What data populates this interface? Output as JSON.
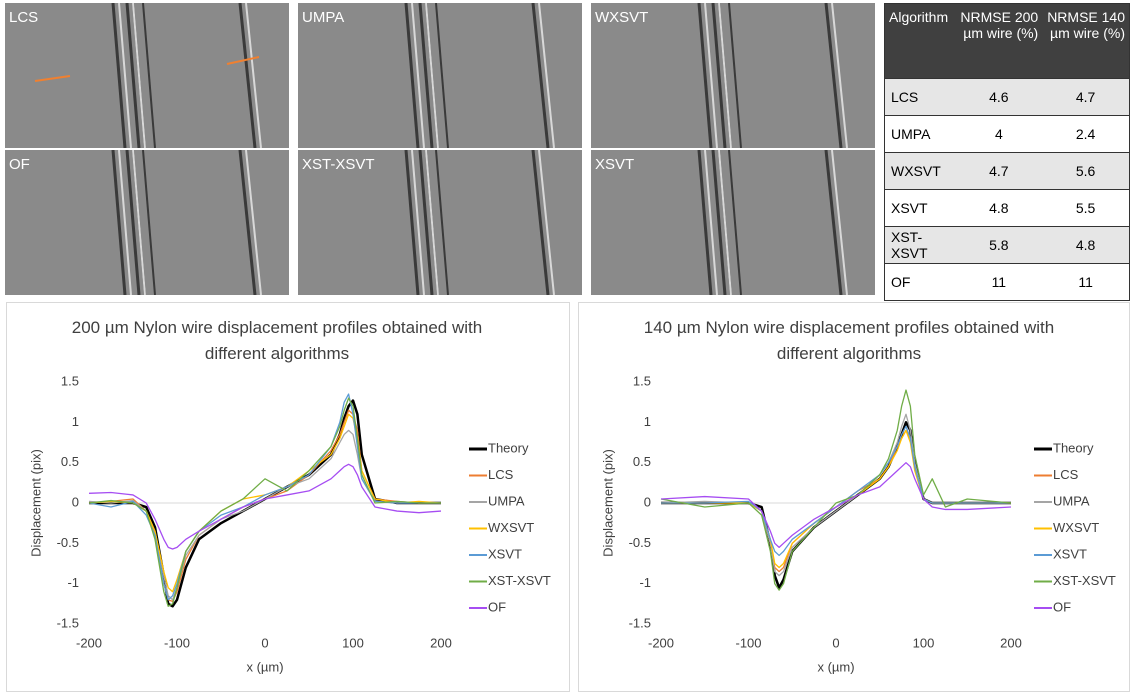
{
  "panels": [
    "LCS",
    "UMPA",
    "WXSVT",
    "OF",
    "XST-XSVT",
    "XSVT"
  ],
  "table": {
    "header": [
      "Algorithm",
      "NRMSE 200 µm wire (%)",
      "NRMSE 140 µm wire (%)"
    ],
    "rows": [
      [
        "LCS",
        4.6,
        4.7
      ],
      [
        "UMPA",
        4,
        2.4
      ],
      [
        "WXSVT",
        4.7,
        5.6
      ],
      [
        "XSVT",
        4.8,
        5.5
      ],
      [
        "XST-XSVT",
        5.8,
        4.8
      ],
      [
        "OF",
        11,
        11
      ]
    ]
  },
  "chart_data": [
    {
      "type": "line",
      "title": "200 µm Nylon wire displacement profiles obtained with different algorithms",
      "x_label": "x (µm)",
      "y_label": "Displacement (pix)",
      "xlim": [
        -200,
        200
      ],
      "xticks": [
        -200,
        -100,
        0,
        100,
        200
      ],
      "ylim": [
        -1.5,
        1.5
      ],
      "yticks": [
        -1.5,
        -1,
        -0.5,
        0,
        0.5,
        1,
        1.5
      ],
      "legend": "right",
      "x": [
        -200,
        -175,
        -150,
        -135,
        -125,
        -115,
        -110,
        -105,
        -100,
        -90,
        -75,
        -50,
        -25,
        0,
        25,
        50,
        75,
        85,
        90,
        95,
        100,
        105,
        110,
        125,
        150,
        175,
        200
      ],
      "series": [
        {
          "name": "Theory",
          "color": "#000000",
          "values": [
            0,
            0,
            0,
            -0.05,
            -0.3,
            -0.9,
            -1.25,
            -1.28,
            -1.2,
            -0.8,
            -0.45,
            -0.25,
            -0.1,
            0.05,
            0.2,
            0.35,
            0.6,
            0.85,
            1.05,
            1.2,
            1.27,
            1.1,
            0.6,
            0.05,
            0,
            0,
            0
          ]
        },
        {
          "name": "LCS",
          "color": "#ed7d31",
          "values": [
            0,
            0.02,
            0.05,
            -0.1,
            -0.4,
            -1.0,
            -1.2,
            -1.22,
            -1.1,
            -0.7,
            -0.4,
            -0.2,
            -0.05,
            0.05,
            0.15,
            0.35,
            0.65,
            0.85,
            1.0,
            1.15,
            1.1,
            0.9,
            0.4,
            0.05,
            0.02,
            0,
            0
          ]
        },
        {
          "name": "UMPA",
          "color": "#a5a5a5",
          "values": [
            0.02,
            0,
            0.03,
            -0.1,
            -0.35,
            -0.9,
            -1.15,
            -1.2,
            -1.05,
            -0.65,
            -0.4,
            -0.2,
            -0.1,
            0.05,
            0.2,
            0.3,
            0.55,
            0.75,
            0.85,
            0.9,
            0.85,
            0.6,
            0.3,
            0.02,
            0,
            0,
            0
          ]
        },
        {
          "name": "WXSVT",
          "color": "#ffc000",
          "values": [
            0,
            0.02,
            0,
            -0.1,
            -0.35,
            -0.85,
            -1.05,
            -1.1,
            -0.95,
            -0.6,
            -0.35,
            -0.1,
            0.05,
            0.1,
            0.2,
            0.4,
            0.6,
            0.8,
            0.95,
            1.1,
            1.05,
            0.8,
            0.4,
            0.05,
            0,
            0.02,
            0
          ]
        },
        {
          "name": "XSVT",
          "color": "#5b9bd5",
          "values": [
            0,
            -0.05,
            0.02,
            -0.15,
            -0.4,
            -1.0,
            -1.2,
            -1.15,
            -1.0,
            -0.6,
            -0.35,
            -0.15,
            -0.05,
            0.1,
            0.2,
            0.35,
            0.7,
            1.0,
            1.25,
            1.35,
            1.1,
            0.7,
            0.3,
            0.02,
            0,
            0,
            0
          ]
        },
        {
          "name": "XST-XSVT",
          "color": "#70ad47",
          "values": [
            0,
            0.03,
            0,
            -0.1,
            -0.45,
            -1.1,
            -1.28,
            -1.25,
            -1.05,
            -0.6,
            -0.35,
            -0.1,
            0.05,
            0.3,
            0.15,
            0.4,
            0.7,
            0.95,
            1.15,
            1.3,
            1.2,
            0.8,
            0.35,
            0,
            0.02,
            0,
            0
          ]
        },
        {
          "name": "OF",
          "color": "#a64df2",
          "values": [
            0.12,
            0.13,
            0.1,
            0,
            -0.2,
            -0.45,
            -0.55,
            -0.57,
            -0.55,
            -0.45,
            -0.35,
            -0.2,
            -0.05,
            0.05,
            0.1,
            0.15,
            0.3,
            0.4,
            0.45,
            0.48,
            0.45,
            0.35,
            0.2,
            -0.05,
            -0.1,
            -0.12,
            -0.1
          ]
        }
      ]
    },
    {
      "type": "line",
      "title": "140 µm Nylon wire displacement profiles obtained with different algorithms",
      "x_label": "x (µm)",
      "y_label": "Displacement (pix)",
      "xlim": [
        -200,
        200
      ],
      "xticks": [
        -200,
        -100,
        0,
        100,
        200
      ],
      "ylim": [
        -1.5,
        1.5
      ],
      "yticks": [
        -1.5,
        -1,
        -0.5,
        0,
        0.5,
        1,
        1.5
      ],
      "legend": "right",
      "x": [
        -200,
        -150,
        -100,
        -85,
        -75,
        -70,
        -65,
        -60,
        -50,
        -25,
        0,
        25,
        50,
        60,
        70,
        75,
        80,
        85,
        90,
        100,
        110,
        125,
        150,
        200
      ],
      "series": [
        {
          "name": "Theory",
          "color": "#000000",
          "values": [
            0,
            0,
            0,
            -0.05,
            -0.5,
            -0.9,
            -1.05,
            -0.95,
            -0.6,
            -0.3,
            -0.1,
            0.1,
            0.3,
            0.45,
            0.7,
            0.85,
            1.0,
            0.9,
            0.5,
            0.05,
            0,
            0,
            0,
            0
          ]
        },
        {
          "name": "LCS",
          "color": "#ed7d31",
          "values": [
            0,
            0,
            0,
            -0.1,
            -0.5,
            -0.8,
            -0.85,
            -0.8,
            -0.5,
            -0.25,
            -0.05,
            0.15,
            0.3,
            0.45,
            0.7,
            0.8,
            0.9,
            0.8,
            0.45,
            0.05,
            0,
            0,
            0,
            0
          ]
        },
        {
          "name": "UMPA",
          "color": "#a5a5a5",
          "values": [
            0,
            0.02,
            0,
            -0.1,
            -0.5,
            -0.85,
            -0.9,
            -0.85,
            -0.55,
            -0.3,
            -0.1,
            0.1,
            0.35,
            0.5,
            0.75,
            0.95,
            1.1,
            0.9,
            0.5,
            0.05,
            0,
            0,
            0,
            0
          ]
        },
        {
          "name": "WXSVT",
          "color": "#ffc000",
          "values": [
            0,
            0,
            0,
            -0.1,
            -0.45,
            -0.75,
            -0.8,
            -0.75,
            -0.5,
            -0.25,
            -0.05,
            0.1,
            0.3,
            0.45,
            0.65,
            0.8,
            0.9,
            0.75,
            0.4,
            0.05,
            0,
            0,
            0,
            0
          ]
        },
        {
          "name": "XSVT",
          "color": "#5b9bd5",
          "values": [
            0,
            0,
            0.02,
            -0.1,
            -0.45,
            -0.6,
            -0.65,
            -0.6,
            -0.45,
            -0.25,
            -0.05,
            0.15,
            0.35,
            0.5,
            0.7,
            0.85,
            0.95,
            0.8,
            0.45,
            0.05,
            0,
            0,
            0,
            0
          ]
        },
        {
          "name": "XST-XSVT",
          "color": "#70ad47",
          "values": [
            0.05,
            -0.05,
            0,
            -0.15,
            -0.6,
            -1.0,
            -1.08,
            -1.0,
            -0.6,
            -0.3,
            0,
            0.1,
            0.35,
            0.55,
            0.9,
            1.2,
            1.4,
            1.2,
            0.6,
            0.1,
            0.3,
            -0.05,
            0.05,
            0
          ]
        },
        {
          "name": "OF",
          "color": "#a64df2",
          "values": [
            0.05,
            0.08,
            0.05,
            -0.1,
            -0.35,
            -0.5,
            -0.55,
            -0.5,
            -0.4,
            -0.2,
            -0.05,
            0.1,
            0.2,
            0.3,
            0.4,
            0.45,
            0.5,
            0.45,
            0.3,
            0.05,
            -0.05,
            -0.08,
            -0.08,
            -0.05
          ]
        }
      ]
    }
  ]
}
